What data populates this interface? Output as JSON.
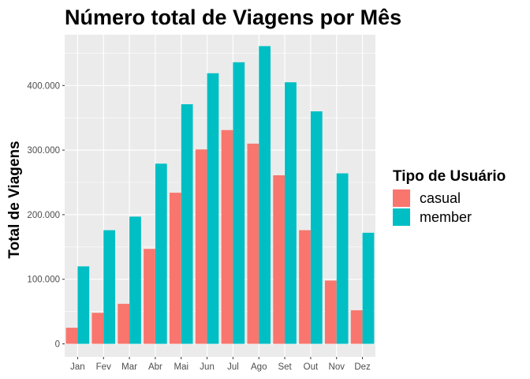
{
  "chart_data": {
    "type": "bar",
    "title": "Número total de Viagens por Mês",
    "xlabel": "",
    "ylabel": "Total de Viagens",
    "categories": [
      "Jan",
      "Fev",
      "Mar",
      "Abr",
      "Mai",
      "Jun",
      "Jul",
      "Ago",
      "Set",
      "Out",
      "Nov",
      "Dez"
    ],
    "series": [
      {
        "name": "casual",
        "color": "#F8766D",
        "values": [
          25000,
          48000,
          62000,
          147000,
          234000,
          301000,
          331000,
          310000,
          261000,
          176000,
          98000,
          52000
        ]
      },
      {
        "name": "member",
        "color": "#00BFC4",
        "values": [
          120000,
          176000,
          197000,
          279000,
          371000,
          419000,
          436000,
          461000,
          405000,
          360000,
          264000,
          172000
        ]
      }
    ],
    "ylim": [
      0,
      480000
    ],
    "yticks": [
      0,
      100000,
      200000,
      300000,
      400000
    ],
    "ytick_labels": [
      "0",
      "100.000",
      "200.000",
      "300.000",
      "400.000"
    ],
    "grid": true,
    "legend": {
      "title": "Tipo de Usuário",
      "position": "right"
    },
    "background": "#EBEBEB",
    "grid_color": "#FFFFFF"
  }
}
